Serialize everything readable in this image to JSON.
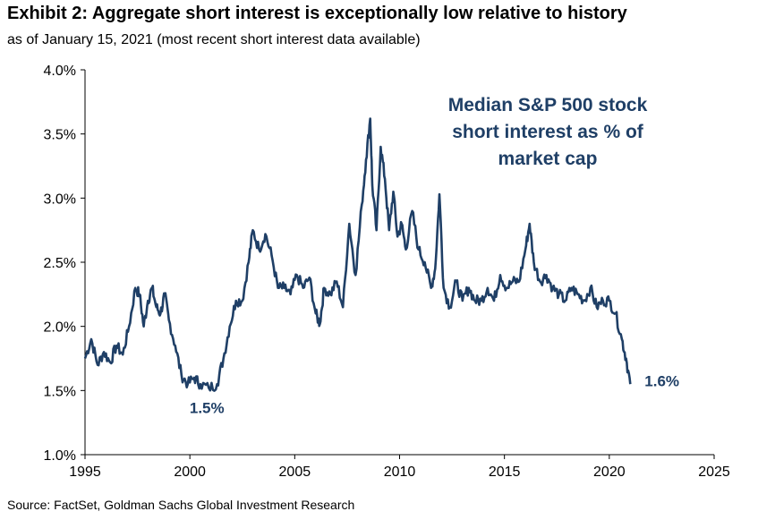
{
  "header": {
    "title": "Exhibit 2: Aggregate short interest is exceptionally low relative to history",
    "subtitle": "as of January 15, 2021 (most recent short interest data available)"
  },
  "footer": {
    "source": "Source: FactSet, Goldman Sachs Global Investment Research"
  },
  "chart_data": {
    "type": "line",
    "xlim": [
      1995,
      2025
    ],
    "ylim": [
      1.0,
      4.0
    ],
    "x_ticks": [
      "1995",
      "2000",
      "2005",
      "2010",
      "2015",
      "2020",
      "2025"
    ],
    "y_ticks": [
      "1.0%",
      "1.5%",
      "2.0%",
      "2.5%",
      "3.0%",
      "3.5%",
      "4.0%"
    ],
    "legend_lines": [
      "Median S&P 500 stock",
      "short interest as % of",
      "market cap"
    ],
    "line_color": "#1F3F66",
    "annotations": [
      {
        "text": "1.5%",
        "x": 2000.9,
        "y": 1.52
      },
      {
        "text": "1.6%",
        "x": 2021.0,
        "y": 1.56
      }
    ],
    "series": [
      {
        "x": [
          1995.0,
          1995.3,
          1995.6,
          1995.9,
          1996.2,
          1996.5,
          1996.8,
          1997.1,
          1997.4,
          1997.6,
          1997.8,
          1998.0,
          1998.2,
          1998.4,
          1998.6,
          1998.8,
          1999.0,
          1999.3,
          1999.6,
          1999.9,
          2000.2,
          2000.5,
          2000.9,
          2001.3,
          2001.6,
          2001.9,
          2002.2,
          2002.5,
          2002.8,
          2003.0,
          2003.3,
          2003.6,
          2003.9,
          2004.2,
          2004.5,
          2004.8,
          2005.1,
          2005.4,
          2005.7,
          2006.0,
          2006.2,
          2006.4,
          2006.7,
          2007.0,
          2007.3,
          2007.6,
          2007.9,
          2008.2,
          2008.4,
          2008.6,
          2008.7,
          2008.9,
          2009.1,
          2009.3,
          2009.5,
          2009.7,
          2009.9,
          2010.1,
          2010.3,
          2010.6,
          2010.9,
          2011.2,
          2011.5,
          2011.7,
          2011.9,
          2012.1,
          2012.4,
          2012.7,
          2013.0,
          2013.3,
          2013.6,
          2013.9,
          2014.2,
          2014.5,
          2014.8,
          2015.1,
          2015.4,
          2015.7,
          2016.0,
          2016.2,
          2016.4,
          2016.7,
          2017.0,
          2017.3,
          2017.6,
          2017.9,
          2018.2,
          2018.5,
          2018.8,
          2019.1,
          2019.4,
          2019.7,
          2020.0,
          2020.3,
          2020.6,
          2020.8,
          2021.0
        ],
        "y": [
          1.75,
          1.9,
          1.7,
          1.8,
          1.72,
          1.85,
          1.78,
          2.0,
          2.3,
          2.25,
          2.0,
          2.2,
          2.3,
          2.15,
          2.1,
          2.25,
          2.05,
          1.85,
          1.62,
          1.55,
          1.6,
          1.55,
          1.52,
          1.55,
          1.75,
          2.0,
          2.2,
          2.2,
          2.5,
          2.75,
          2.6,
          2.72,
          2.55,
          2.3,
          2.3,
          2.25,
          2.4,
          2.3,
          2.38,
          2.1,
          2.02,
          2.3,
          2.25,
          2.35,
          2.15,
          2.8,
          2.4,
          2.95,
          3.3,
          3.62,
          3.1,
          2.75,
          3.4,
          3.15,
          2.75,
          3.05,
          2.7,
          2.8,
          2.6,
          2.9,
          2.6,
          2.5,
          2.3,
          2.45,
          3.03,
          2.3,
          2.15,
          2.35,
          2.2,
          2.3,
          2.2,
          2.2,
          2.3,
          2.2,
          2.4,
          2.3,
          2.35,
          2.35,
          2.6,
          2.8,
          2.5,
          2.35,
          2.4,
          2.3,
          2.25,
          2.2,
          2.3,
          2.25,
          2.2,
          2.3,
          2.15,
          2.2,
          2.2,
          2.1,
          1.9,
          1.75,
          1.55
        ]
      }
    ]
  }
}
